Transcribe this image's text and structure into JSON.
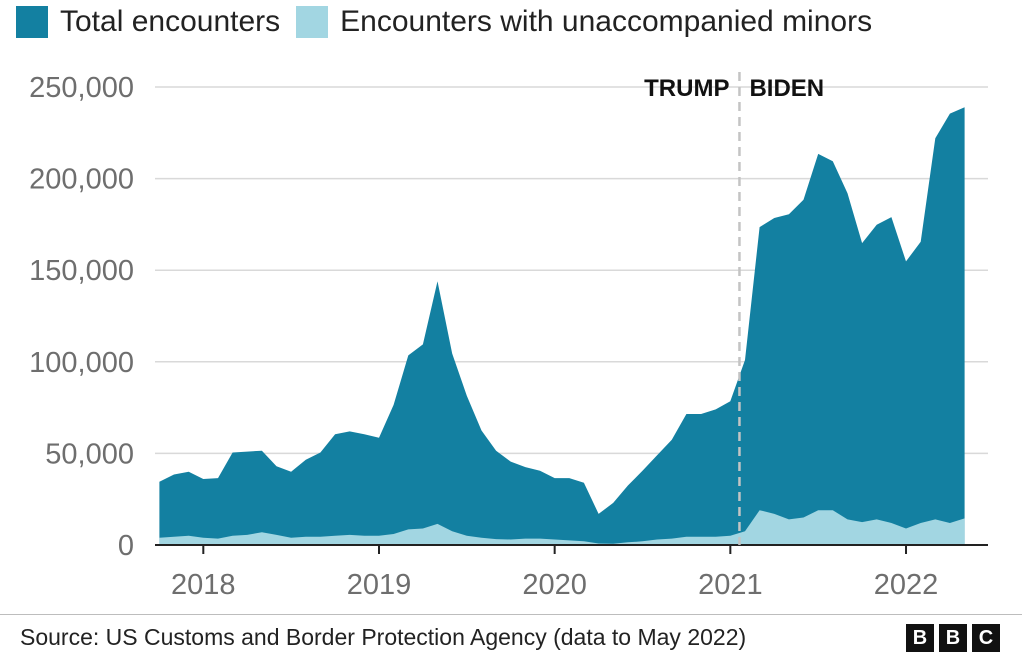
{
  "chart_data": {
    "type": "area",
    "xlabel": "",
    "ylabel": "",
    "ylim": [
      0,
      250000
    ],
    "y_ticks": [
      0,
      50000,
      100000,
      150000,
      200000,
      250000
    ],
    "y_tick_labels": [
      "0",
      "50,000",
      "100,000",
      "150,000",
      "200,000",
      "250,000"
    ],
    "x_range": [
      "2017-10",
      "2022-05"
    ],
    "x_ticks": [
      "2018-01",
      "2019-01",
      "2020-01",
      "2021-01",
      "2022-01"
    ],
    "x_tick_labels": [
      "2018",
      "2019",
      "2020",
      "2021",
      "2022"
    ],
    "grid": "horizontal",
    "legend_position": "top-left",
    "x": [
      "2017-10",
      "2017-11",
      "2017-12",
      "2018-01",
      "2018-02",
      "2018-03",
      "2018-04",
      "2018-05",
      "2018-06",
      "2018-07",
      "2018-08",
      "2018-09",
      "2018-10",
      "2018-11",
      "2018-12",
      "2019-01",
      "2019-02",
      "2019-03",
      "2019-04",
      "2019-05",
      "2019-06",
      "2019-07",
      "2019-08",
      "2019-09",
      "2019-10",
      "2019-11",
      "2019-12",
      "2020-01",
      "2020-02",
      "2020-03",
      "2020-04",
      "2020-05",
      "2020-06",
      "2020-07",
      "2020-08",
      "2020-09",
      "2020-10",
      "2020-11",
      "2020-12",
      "2021-01",
      "2021-02",
      "2021-03",
      "2021-04",
      "2021-05",
      "2021-06",
      "2021-07",
      "2021-08",
      "2021-09",
      "2021-10",
      "2021-11",
      "2021-12",
      "2022-01",
      "2022-02",
      "2022-03",
      "2022-04",
      "2022-05"
    ],
    "series": [
      {
        "name": "Total encounters",
        "color": "#1380a1",
        "values": [
          34500,
          38500,
          40000,
          36000,
          36500,
          50500,
          51000,
          51500,
          43000,
          40000,
          46500,
          50500,
          60500,
          62000,
          60500,
          58500,
          76500,
          103500,
          109500,
          144000,
          104500,
          81500,
          62500,
          51500,
          45500,
          42500,
          40500,
          36500,
          36500,
          34000,
          17000,
          23000,
          32500,
          40500,
          49000,
          57500,
          71500,
          71500,
          74000,
          78500,
          101000,
          173500,
          178500,
          180500,
          188500,
          213500,
          209500,
          192000,
          164800,
          174800,
          179000,
          154800,
          165500,
          222000,
          235500,
          239000
        ]
      },
      {
        "name": "Encounters with unaccompanied minors",
        "color": "#a2d6e2",
        "values": [
          4000,
          4500,
          5000,
          4000,
          3500,
          5000,
          5500,
          7000,
          5500,
          4000,
          4500,
          4500,
          5000,
          5500,
          5000,
          5000,
          6000,
          8500,
          9000,
          11500,
          7500,
          5000,
          4000,
          3200,
          3000,
          3500,
          3500,
          3000,
          2500,
          2000,
          800,
          700,
          1500,
          2000,
          3000,
          3500,
          4500,
          4500,
          4500,
          5000,
          7500,
          19000,
          17000,
          14000,
          15000,
          19000,
          19000,
          14000,
          12500,
          14000,
          12000,
          9000,
          12000,
          14000,
          12000,
          14500
        ]
      }
    ],
    "annotations": [
      {
        "label_left": "TRUMP",
        "label_right": "BIDEN",
        "x": "2021-01-20",
        "style": "dashed-vertical"
      }
    ]
  },
  "source": "Source: US Customs and Border Protection Agency (data to May 2022)",
  "logo": {
    "letters": [
      "B",
      "B",
      "C"
    ]
  },
  "colors": {
    "grid": "#d9d9d9",
    "axis": "#222222",
    "tick_text": "#6e6e6e",
    "divider": "#bbbbbb"
  }
}
